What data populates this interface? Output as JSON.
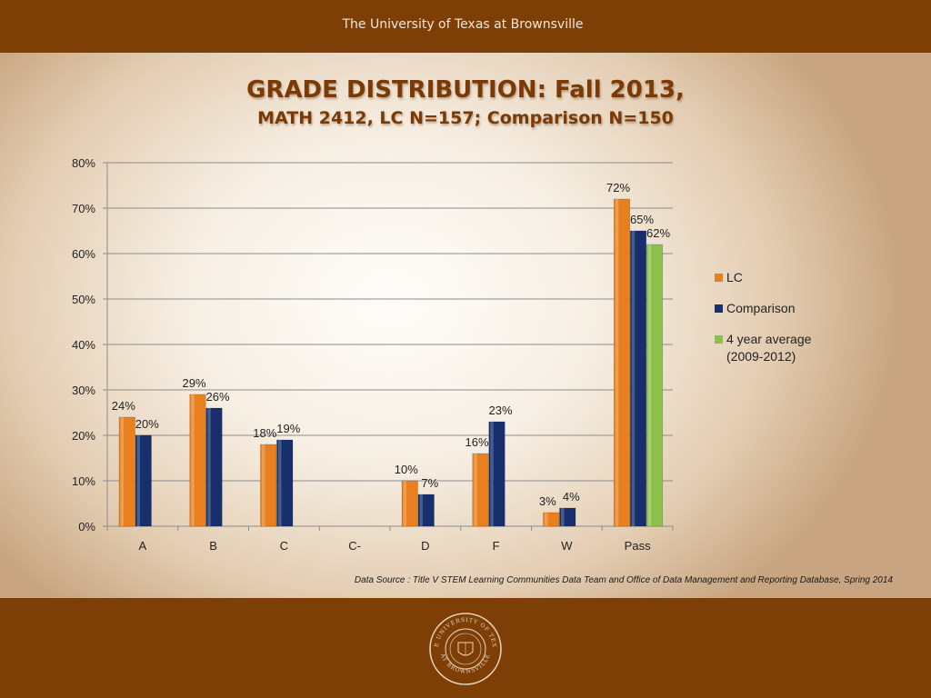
{
  "header": {
    "university": "The University of Texas at Brownsville"
  },
  "slide": {
    "title_line1": "GRADE DISTRIBUTION: Fall 2013,",
    "title_line2": "MATH 2412, LC N=157; Comparison N=150"
  },
  "colors": {
    "header_bg": "#7e3f06",
    "title": "#7b3a05",
    "lc": "#e8801f",
    "comparison": "#17306d",
    "four_year": "#8cc04a"
  },
  "chart_data": {
    "type": "bar",
    "categories": [
      "A",
      "B",
      "C",
      "C-",
      "D",
      "F",
      "W",
      "Pass"
    ],
    "series": [
      {
        "name": "LC",
        "color": "#e8801f",
        "values": [
          24,
          29,
          18,
          null,
          10,
          16,
          3,
          72
        ],
        "labels": [
          "24%",
          "29%",
          "18%",
          null,
          "10%",
          "16%",
          "3%",
          "72%"
        ]
      },
      {
        "name": "Comparison",
        "color": "#17306d",
        "values": [
          20,
          26,
          19,
          null,
          7,
          23,
          4,
          65
        ],
        "labels": [
          "20%",
          "26%",
          "19%",
          null,
          "7%",
          "23%",
          "4%",
          "65%"
        ]
      },
      {
        "name": "4 year average (2009-2012)",
        "color": "#8cc04a",
        "values": [
          null,
          null,
          null,
          null,
          null,
          null,
          null,
          62
        ],
        "labels": [
          null,
          null,
          null,
          null,
          null,
          null,
          null,
          "62%"
        ]
      }
    ],
    "y_ticks": [
      "0%",
      "10%",
      "20%",
      "30%",
      "40%",
      "50%",
      "60%",
      "70%",
      "80%"
    ],
    "ylim": [
      0,
      80
    ],
    "grid": true,
    "legend_position": "right"
  },
  "legend": {
    "lc": "LC",
    "comparison": "Comparison",
    "four_year_line1": "4 year average",
    "four_year_line2": "(2009-2012)"
  },
  "footer": {
    "source": "Data Source : Title V STEM Learning Communities Data Team and  Office of Data Management and Reporting Database, Spring 2014"
  },
  "seal": {
    "text_top": "THE UNIVERSITY OF TEXAS",
    "text_bottom": "AT BROWNSVILLE"
  }
}
